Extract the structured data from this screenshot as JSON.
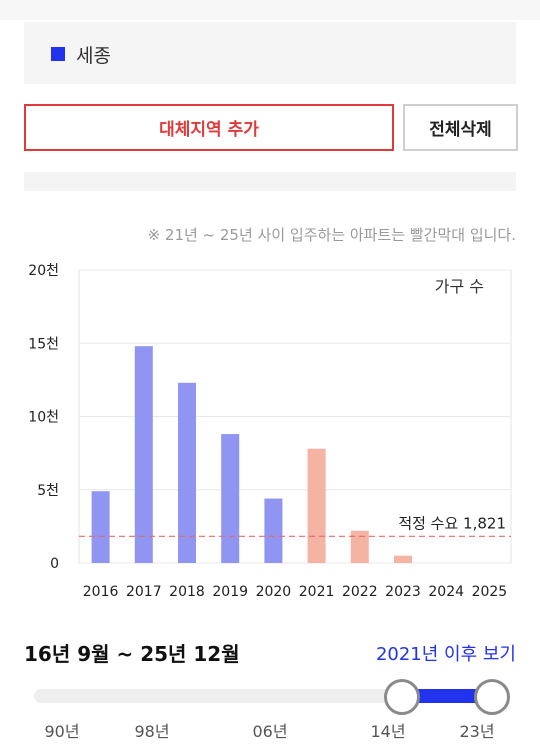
{
  "region": {
    "name": "세종",
    "color": "#2233ee"
  },
  "buttons": {
    "add_region": "대체지역 추가",
    "clear_all": "전체삭제"
  },
  "note": "※ 21년 ~ 25년 사이 입주하는 아파트는 빨간막대 입니다.",
  "chart_data": {
    "type": "bar",
    "unit_label": "가구 수",
    "categories": [
      "2016",
      "2017",
      "2018",
      "2019",
      "2020",
      "2021",
      "2022",
      "2023",
      "2024",
      "2025"
    ],
    "values": [
      4900,
      14800,
      12300,
      8800,
      4400,
      7800,
      2200,
      500,
      0,
      0
    ],
    "y_ticks": [
      0,
      5000,
      10000,
      15000,
      20000
    ],
    "y_tick_labels": [
      "0",
      "5천",
      "10천",
      "15천",
      "20천"
    ],
    "ylim": [
      0,
      20000
    ],
    "grid": true,
    "colors": {
      "past": "#8f95f0",
      "future": "#f4b3a3",
      "reference": "#e86a6a"
    },
    "future_from_index": 5,
    "reference_line": {
      "value": 1821,
      "label": "적정 수요 1,821"
    }
  },
  "period": {
    "range_text": "16년 9월 ~ 25년 12월",
    "link_text": "2021년 이후 보기",
    "link_color": "#2233ee"
  },
  "slider": {
    "labels": [
      "90년",
      "98년",
      "06년",
      "14년",
      "23년"
    ],
    "accent": "#2233ee"
  }
}
